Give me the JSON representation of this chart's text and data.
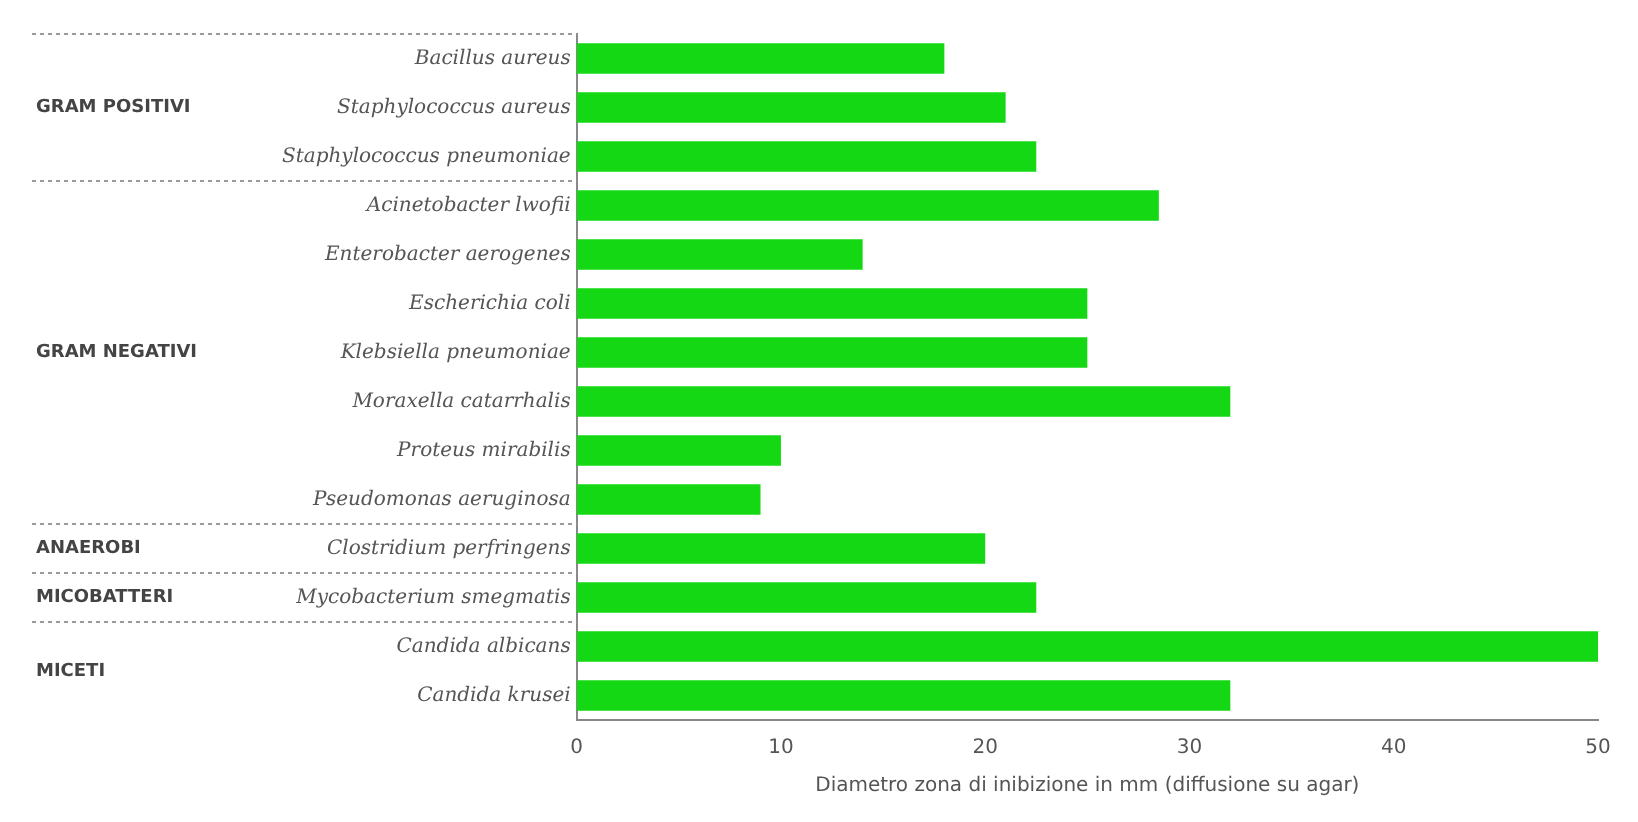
{
  "chart_data": {
    "type": "bar",
    "orientation": "horizontal",
    "xlabel": "Diametro zona di inibizione in mm (diffusione su agar)",
    "categories": [
      "Bacillus aureus",
      "Staphylococcus aureus",
      "Staphylococcus pneumoniae",
      "Acinetobacter lwofii",
      "Enterobacter aerogenes",
      "Escherichia coli",
      "Klebsiella pneumoniae",
      "Moraxella catarrhalis",
      "Proteus mirabilis",
      "Pseudomonas aeruginosa",
      "Clostridium perfringens",
      "Mycobacterium smegmatis",
      "Candida albicans",
      "Candida krusei"
    ],
    "values": [
      18,
      21,
      22.5,
      28.5,
      14,
      25,
      25,
      32,
      10,
      9,
      20,
      22.5,
      50,
      32
    ],
    "color": "#14d814",
    "xlim": [
      0,
      50
    ],
    "xticks": [
      0,
      10,
      20,
      30,
      40,
      50
    ],
    "grid": false,
    "legend": false,
    "annotations": [
      "GRAM POSITIVI",
      "GRAM NEGATIVI",
      "ANAEROBI",
      "MICOBATTERI",
      "MICETI"
    ]
  }
}
